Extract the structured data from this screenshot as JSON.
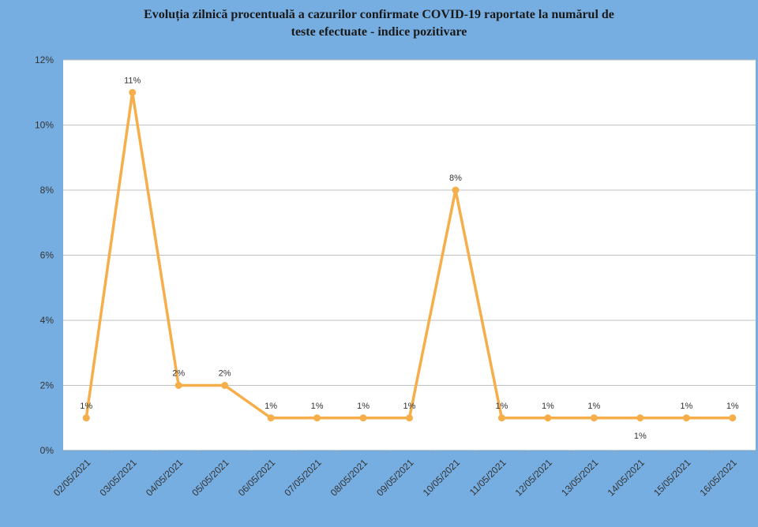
{
  "chart_data": {
    "type": "line",
    "title": [
      "Evoluția zilnică procentuală a cazurilor confirmate COVID-19 raportate la numărul de",
      "teste efectuate - indice pozitivare"
    ],
    "categories": [
      "02/05/2021",
      "03/05/2021",
      "04/05/2021",
      "05/05/2021",
      "06/05/2021",
      "07/05/2021",
      "08/05/2021",
      "09/05/2021",
      "10/05/2021",
      "11/05/2021",
      "12/05/2021",
      "13/05/2021",
      "14/05/2021",
      "15/05/2021",
      "16/05/2021"
    ],
    "series": [
      {
        "values": [
          1,
          11,
          2,
          2,
          1,
          1,
          1,
          1,
          8,
          1,
          1,
          1,
          1,
          1,
          1
        ],
        "color": "#f5ae4a"
      }
    ],
    "data_labels": [
      "1%",
      "11%",
      "2%",
      "2%",
      "1%",
      "1%",
      "1%",
      "1%",
      "8%",
      "1%",
      "1%",
      "1%",
      "1%",
      "1%",
      "1%"
    ],
    "label_positions": [
      "above",
      "above",
      "above",
      "above",
      "above",
      "above",
      "above",
      "above",
      "above",
      "above",
      "above",
      "above",
      "below",
      "above",
      "above"
    ],
    "ylim": [
      0,
      12
    ],
    "yticks": [
      "0%",
      "2%",
      "4%",
      "6%",
      "8%",
      "10%",
      "12%"
    ],
    "xlabel": "",
    "ylabel": "",
    "grid": true,
    "legend": "none",
    "background_color": "#77aee1",
    "plot_background": "#ffffff"
  }
}
